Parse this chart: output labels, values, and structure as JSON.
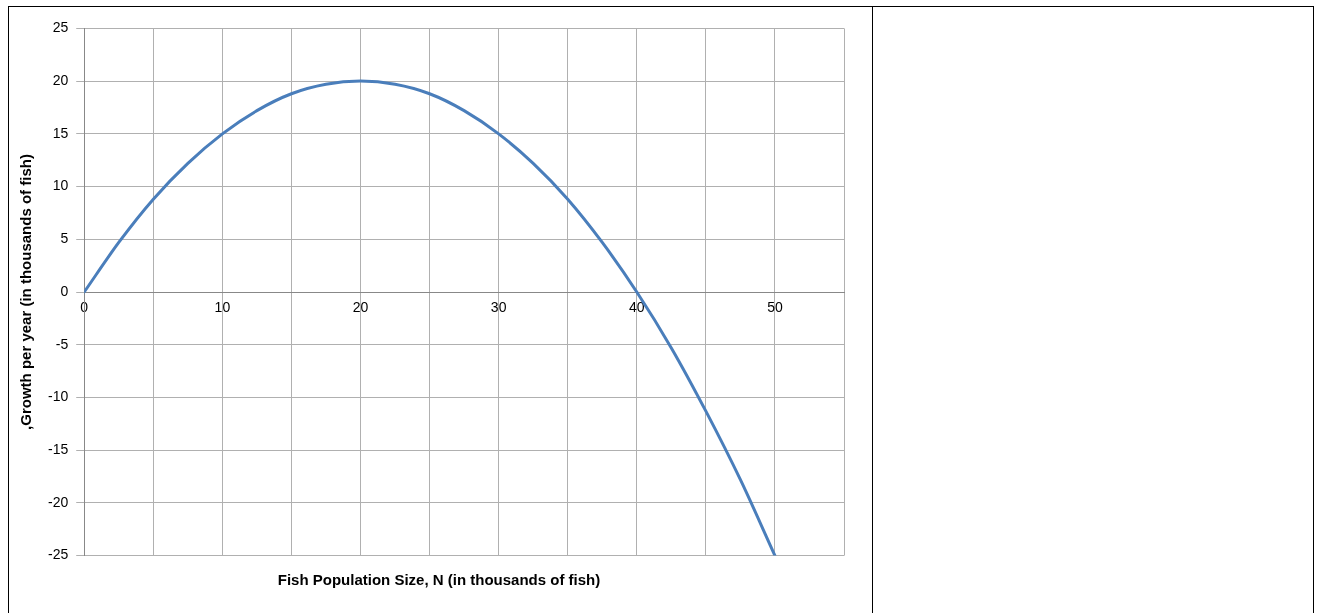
{
  "chart_data": {
    "type": "line",
    "xlabel": "Fish Population Size, N (in thousands of fish)",
    "ylabel": ",Growth per year (in thousands of fish)",
    "x": [
      0,
      2.5,
      5,
      7.5,
      10,
      12.5,
      15,
      17.5,
      20,
      22.5,
      25,
      27.5,
      30,
      32.5,
      35,
      37.5,
      40,
      42.5,
      45,
      47.5,
      50
    ],
    "series": [
      {
        "color": "#4a7ebb",
        "values": [
          0,
          4.7,
          8.8,
          12.2,
          15,
          17.2,
          18.8,
          19.7,
          20,
          19.7,
          18.8,
          17.2,
          15,
          12.2,
          8.8,
          4.7,
          0,
          -5.3,
          -11.3,
          -17.8,
          -25
        ]
      }
    ],
    "xlim": [
      0,
      55
    ],
    "xticks": [
      0,
      {
        "value": 5,
        "label": null
      },
      10,
      {
        "value": 15,
        "label": null
      },
      20,
      {
        "value": 25,
        "label": null
      },
      30,
      {
        "value": 35,
        "label": null
      },
      40,
      {
        "value": 45,
        "label": null
      },
      50,
      {
        "value": 55,
        "label": null
      }
    ],
    "ylim": [
      -25,
      25
    ],
    "yticks": [
      -25,
      -20,
      -15,
      -10,
      -5,
      0,
      5,
      10,
      15,
      20,
      25
    ],
    "grid": true,
    "legend": false,
    "marker": "none",
    "line_style": "solid"
  }
}
